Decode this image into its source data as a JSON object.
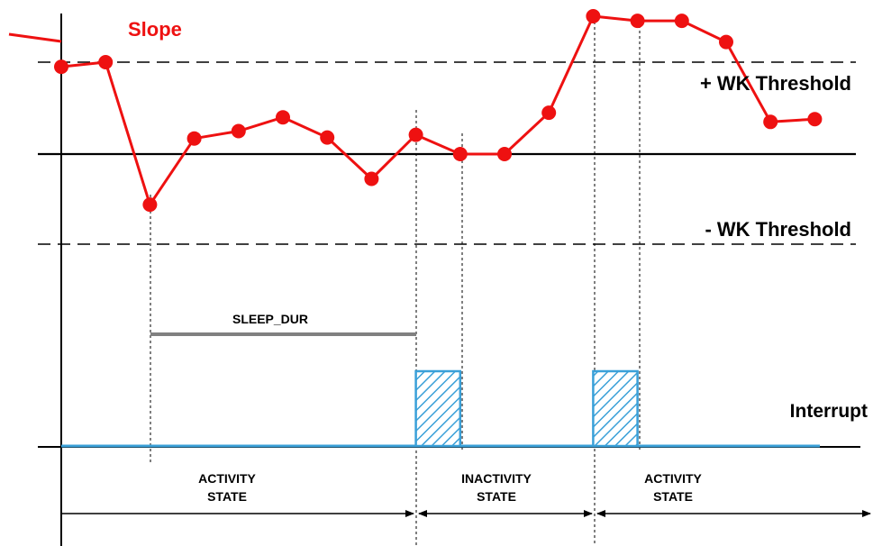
{
  "labels": {
    "slope": "Slope",
    "plus_threshold": "+ WK Threshold",
    "minus_threshold": "- WK Threshold",
    "sleep_dur": "SLEEP_DUR",
    "interrupt": "Interrupt"
  },
  "states": [
    {
      "line1": "ACTIVITY",
      "line2": "STATE"
    },
    {
      "line1": "INACTIVITY",
      "line2": "STATE"
    },
    {
      "line1": "ACTIVITY",
      "line2": "STATE"
    }
  ],
  "colors": {
    "slope": "#ee1111",
    "interrupt": "#3aa0d8",
    "sleep_bar": "#808080",
    "axis": "#000000"
  },
  "slope_samples": [
    {
      "step": 0,
      "level": 0.95
    },
    {
      "step": 1,
      "level": 1.0
    },
    {
      "step": 2,
      "level": -0.55
    },
    {
      "step": 3,
      "level": 0.17
    },
    {
      "step": 4,
      "level": 0.25
    },
    {
      "step": 5,
      "level": 0.4
    },
    {
      "step": 6,
      "level": 0.18
    },
    {
      "step": 7,
      "level": -0.27
    },
    {
      "step": 8,
      "level": 0.21
    },
    {
      "step": 9,
      "level": 0.0
    },
    {
      "step": 10,
      "level": 0.0
    },
    {
      "step": 11,
      "level": 0.45
    },
    {
      "step": 12,
      "level": 1.5
    },
    {
      "step": 13,
      "level": 1.45
    },
    {
      "step": 14,
      "level": 1.45
    },
    {
      "step": 15,
      "level": 1.22
    },
    {
      "step": 16,
      "level": 0.35
    },
    {
      "step": 17,
      "level": 0.38
    }
  ],
  "interrupt_pulses": [
    {
      "from": 8,
      "to": 9
    },
    {
      "from": 12,
      "to": 13
    }
  ]
}
